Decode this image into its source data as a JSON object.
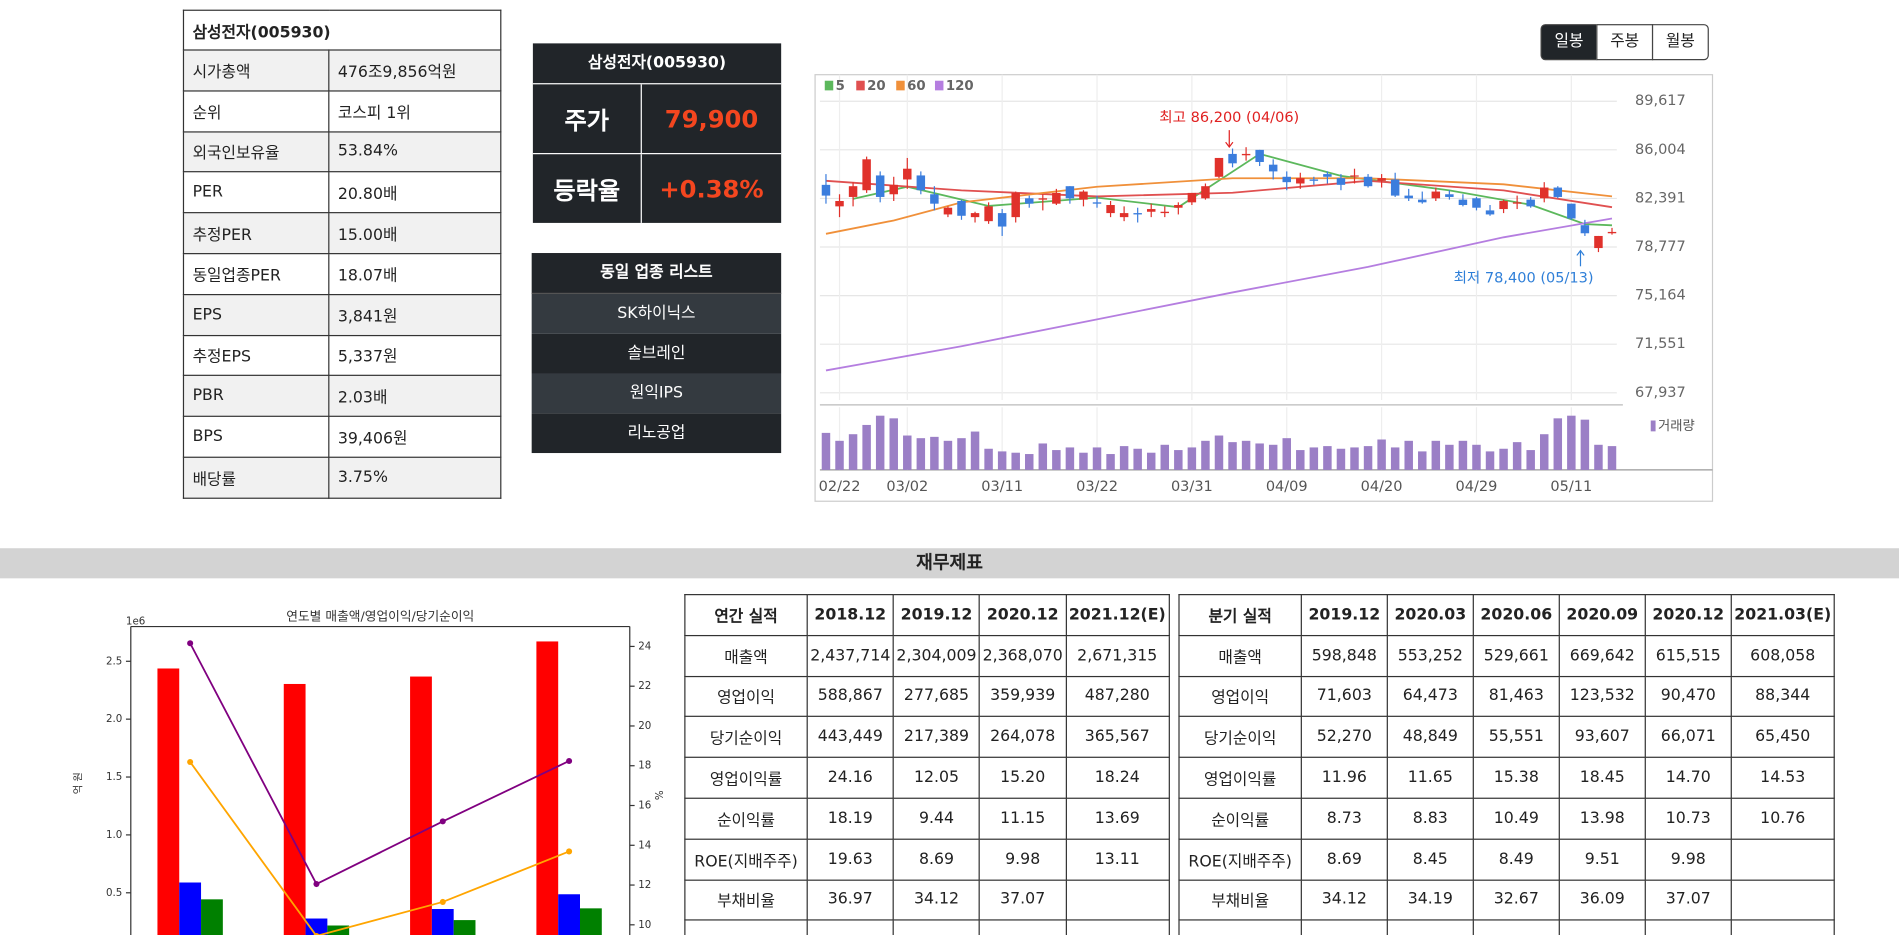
{
  "stock_info": {
    "title": "삼성전자(005930)",
    "rows": [
      [
        "시가총액",
        "476조9,856억원"
      ],
      [
        "순위",
        "코스피 1위"
      ],
      [
        "외국인보유율",
        "53.84%"
      ],
      [
        "PER",
        "20.80배"
      ],
      [
        "추정PER",
        "15.00배"
      ],
      [
        "동일업종PER",
        "18.07배"
      ],
      [
        "EPS",
        "3,841원"
      ],
      [
        "추정EPS",
        "5,337원"
      ],
      [
        "PBR",
        "2.03배"
      ],
      [
        "BPS",
        "39,406원"
      ],
      [
        "배당률",
        "3.75%"
      ]
    ]
  },
  "price_box": {
    "title": "삼성전자(005930)",
    "rows": [
      [
        "주가",
        "79,900"
      ],
      [
        "등락율",
        "+0.38%"
      ]
    ]
  },
  "industry_list": {
    "title": "동일 업종 리스트",
    "items": [
      "SK하이닉스",
      "솔브레인",
      "원익IPS",
      "리노공업"
    ]
  },
  "period_buttons": [
    "일봉",
    "주봉",
    "월봉"
  ],
  "price_chart": {
    "type": "candlestick",
    "categories": [
      null,
      "02/22",
      null,
      null,
      null,
      null,
      "03/02",
      null,
      null,
      null,
      null,
      null,
      null,
      "03/11",
      null,
      null,
      null,
      null,
      null,
      null,
      "03/22",
      null,
      null,
      null,
      null,
      null,
      null,
      "03/31",
      null,
      null,
      null,
      null,
      null,
      null,
      "04/09",
      null,
      null,
      null,
      null,
      null,
      null,
      "04/20",
      null,
      null,
      null,
      null,
      null,
      null,
      "04/29",
      null,
      null,
      null,
      null,
      null,
      null,
      "05/11",
      null,
      null,
      null
    ],
    "ohlc": [
      [
        83400,
        84200,
        82000,
        82600
      ],
      [
        81800,
        82700,
        81000,
        82200
      ],
      [
        82500,
        83600,
        81800,
        83300
      ],
      [
        83000,
        85500,
        82800,
        85300
      ],
      [
        84100,
        84400,
        82100,
        82500
      ],
      [
        82700,
        84000,
        82200,
        83400
      ],
      [
        83800,
        85400,
        83100,
        84600
      ],
      [
        84100,
        84400,
        82700,
        83000
      ],
      [
        82700,
        83300,
        81500,
        82000
      ],
      [
        81200,
        81800,
        81000,
        81700
      ],
      [
        82200,
        82300,
        80800,
        81100
      ],
      [
        81000,
        81400,
        80600,
        81300
      ],
      [
        80700,
        82100,
        80500,
        81800
      ],
      [
        81300,
        81600,
        79600,
        80300
      ],
      [
        81000,
        82900,
        80600,
        82800
      ],
      [
        82400,
        82600,
        81700,
        82000
      ],
      [
        82300,
        82700,
        81500,
        82400
      ],
      [
        82000,
        83100,
        81900,
        82800
      ],
      [
        83300,
        83300,
        82000,
        82400
      ],
      [
        82300,
        83000,
        81800,
        82900
      ],
      [
        82100,
        82600,
        81700,
        82000
      ],
      [
        81300,
        82200,
        81000,
        81900
      ],
      [
        81000,
        81800,
        80700,
        81300
      ],
      [
        81300,
        81700,
        80600,
        81200
      ],
      [
        81400,
        82000,
        81000,
        81600
      ],
      [
        81300,
        81800,
        81000,
        81400
      ],
      [
        81700,
        82100,
        81200,
        81900
      ],
      [
        82100,
        82800,
        81900,
        82800
      ],
      [
        82400,
        83500,
        82300,
        83300
      ],
      [
        84000,
        85400,
        83900,
        85400
      ],
      [
        85700,
        86100,
        84700,
        85000
      ],
      [
        85600,
        86200,
        85200,
        85700
      ],
      [
        86000,
        86000,
        84800,
        85100
      ],
      [
        84900,
        85300,
        83800,
        84400
      ],
      [
        84000,
        84400,
        83000,
        83600
      ],
      [
        83500,
        84300,
        83100,
        83900
      ],
      [
        83800,
        84000,
        83400,
        83700
      ],
      [
        84200,
        84400,
        83500,
        84000
      ],
      [
        83900,
        84200,
        83000,
        83400
      ],
      [
        84100,
        84600,
        83500,
        84100
      ],
      [
        84000,
        84200,
        83200,
        83300
      ],
      [
        83700,
        84200,
        83200,
        83900
      ],
      [
        83800,
        84300,
        82500,
        82600
      ],
      [
        82600,
        83100,
        82200,
        82400
      ],
      [
        82300,
        82900,
        82000,
        82100
      ],
      [
        82400,
        83200,
        82200,
        82900
      ],
      [
        82700,
        83000,
        82300,
        82500
      ],
      [
        82300,
        82700,
        81800,
        81900
      ],
      [
        82400,
        82500,
        81500,
        81700
      ],
      [
        81500,
        81900,
        81100,
        81200
      ],
      [
        81600,
        82300,
        81300,
        82200
      ],
      [
        82000,
        82600,
        81600,
        82100
      ],
      [
        82300,
        82500,
        81700,
        81800
      ],
      [
        82400,
        83600,
        82100,
        83200
      ],
      [
        83200,
        83300,
        82400,
        82500
      ],
      [
        82000,
        82000,
        80800,
        80900
      ],
      [
        80400,
        80800,
        79600,
        79800
      ],
      [
        78700,
        79600,
        78400,
        79600
      ],
      [
        79800,
        80200,
        79700,
        79900
      ]
    ],
    "up_color": "#e0312b",
    "down_color": "#3b7ddd",
    "ylim": [
      67400,
      91590
    ],
    "yticks": [
      {
        "value": 67937,
        "label": "67,937"
      },
      {
        "value": 71551,
        "label": "71,551"
      },
      {
        "value": 75164,
        "label": "75,164"
      },
      {
        "value": 78777,
        "label": "78,777"
      },
      {
        "value": 82391,
        "label": "82,391"
      },
      {
        "value": 86004,
        "label": "86,004"
      },
      {
        "value": 89617,
        "label": "89,617"
      }
    ],
    "moving_averages": [
      {
        "name": "5",
        "color": "#5cb85c",
        "x": [
          2,
          6,
          12,
          20,
          26,
          32,
          38,
          46,
          52,
          56,
          58
        ],
        "values": [
          82360,
          83260,
          81830,
          82450,
          81740,
          85700,
          84070,
          82990,
          81920,
          80480,
          80390
        ]
      },
      {
        "name": "20",
        "color": "#e05050",
        "x": [
          0,
          10,
          20,
          30,
          40,
          50,
          58
        ],
        "values": [
          83700,
          82990,
          82540,
          82810,
          83700,
          82990,
          81740
        ]
      },
      {
        "name": "60",
        "color": "#f0903a",
        "x": [
          0,
          5,
          10,
          20,
          30,
          40,
          50,
          58
        ],
        "values": [
          79760,
          80750,
          82100,
          83260,
          83890,
          83890,
          83440,
          82540
        ]
      },
      {
        "name": "120",
        "color": "#b57ee0",
        "x": [
          0,
          10,
          20,
          30,
          40,
          50,
          58
        ],
        "values": [
          69600,
          71400,
          73400,
          75400,
          77300,
          79500,
          80900
        ]
      }
    ],
    "volume": {
      "name": "거래량",
      "color": "#9b7fc6",
      "values": [
        28,
        22,
        27,
        34,
        41,
        39,
        26,
        24,
        25,
        22,
        24,
        29,
        16,
        14,
        13,
        12,
        20,
        15,
        17,
        13,
        17,
        12,
        18,
        16,
        13,
        19,
        15,
        17,
        22,
        26,
        21,
        22,
        20,
        19,
        24,
        15,
        17,
        18,
        16,
        17,
        18,
        23,
        17,
        22,
        14,
        22,
        19,
        22,
        19,
        14,
        16,
        21,
        15,
        27,
        39,
        41,
        38,
        19,
        18
      ]
    },
    "annotations": [
      {
        "text": "최고 86,200 (04/06)",
        "color": "#e02020"
      },
      {
        "text": "최저 78,400 (05/13)",
        "color": "#2f7fd8"
      }
    ]
  },
  "section_title": "재무제표",
  "financial_chart": {
    "type": "bar_line",
    "title": "연도별 매출액/영업이익/당기순이익",
    "y_offset_label": "1e6",
    "y_label": "억 원",
    "y2_label": "%",
    "ylim": [
      0,
      2800000
    ],
    "yticks": [
      {
        "value": 500000,
        "label": "0.5"
      },
      {
        "value": 1000000,
        "label": "1.0"
      },
      {
        "value": 1500000,
        "label": "1.5"
      },
      {
        "value": 2000000,
        "label": "2.0"
      },
      {
        "value": 2500000,
        "label": "2.5"
      }
    ],
    "y2lim": [
      8.7,
      25
    ],
    "y2ticks": [
      10,
      12,
      14,
      16,
      18,
      20,
      22,
      24
    ],
    "series": [
      {
        "color": "#ff0000",
        "values": [
          2437714,
          2304009,
          2368070,
          2671315
        ]
      },
      {
        "color": "#0000ff",
        "values": [
          588867,
          277685,
          359939,
          487280
        ]
      },
      {
        "color": "#008000",
        "values": [
          443449,
          217389,
          264078,
          365567
        ]
      },
      {
        "color": "#800080",
        "axis": "y2",
        "values": [
          24.16,
          12.05,
          15.2,
          18.24
        ]
      },
      {
        "color": "#ffa500",
        "axis": "y2",
        "values": [
          18.19,
          9.44,
          11.15,
          13.69
        ]
      }
    ]
  },
  "annual_table": {
    "header": [
      "연간 실적",
      "2018.12",
      "2019.12",
      "2020.12",
      "2021.12(E)"
    ],
    "rows": [
      [
        "매출액",
        "2,437,714",
        "2,304,009",
        "2,368,070",
        "2,671,315"
      ],
      [
        "영업이익",
        "588,867",
        "277,685",
        "359,939",
        "487,280"
      ],
      [
        "당기순이익",
        "443,449",
        "217,389",
        "264,078",
        "365,567"
      ],
      [
        "영업이익률",
        "24.16",
        "12.05",
        "15.20",
        "18.24"
      ],
      [
        "순이익률",
        "18.19",
        "9.44",
        "11.15",
        "13.69"
      ],
      [
        "ROE(지배주주)",
        "19.63",
        "8.69",
        "9.98",
        "13.11"
      ],
      [
        "부채비율",
        "36.97",
        "34.12",
        "37.07",
        null
      ]
    ]
  },
  "quarterly_table": {
    "header": [
      "분기 실적",
      "2019.12",
      "2020.03",
      "2020.06",
      "2020.09",
      "2020.12",
      "2021.03(E)"
    ],
    "rows": [
      [
        "매출액",
        "598,848",
        "553,252",
        "529,661",
        "669,642",
        "615,515",
        "608,058"
      ],
      [
        "영업이익",
        "71,603",
        "64,473",
        "81,463",
        "123,532",
        "90,470",
        "88,344"
      ],
      [
        "당기순이익",
        "52,270",
        "48,849",
        "55,551",
        "93,607",
        "66,071",
        "65,450"
      ],
      [
        "영업이익률",
        "11.96",
        "11.65",
        "15.38",
        "18.45",
        "14.70",
        "14.53"
      ],
      [
        "순이익률",
        "8.73",
        "8.83",
        "10.49",
        "13.98",
        "10.73",
        "10.76"
      ],
      [
        "ROE(지배주주)",
        "8.69",
        "8.45",
        "8.49",
        "9.51",
        "9.98",
        null
      ],
      [
        "부채비율",
        "34.12",
        "34.19",
        "32.67",
        "36.09",
        "37.07",
        null
      ]
    ]
  }
}
